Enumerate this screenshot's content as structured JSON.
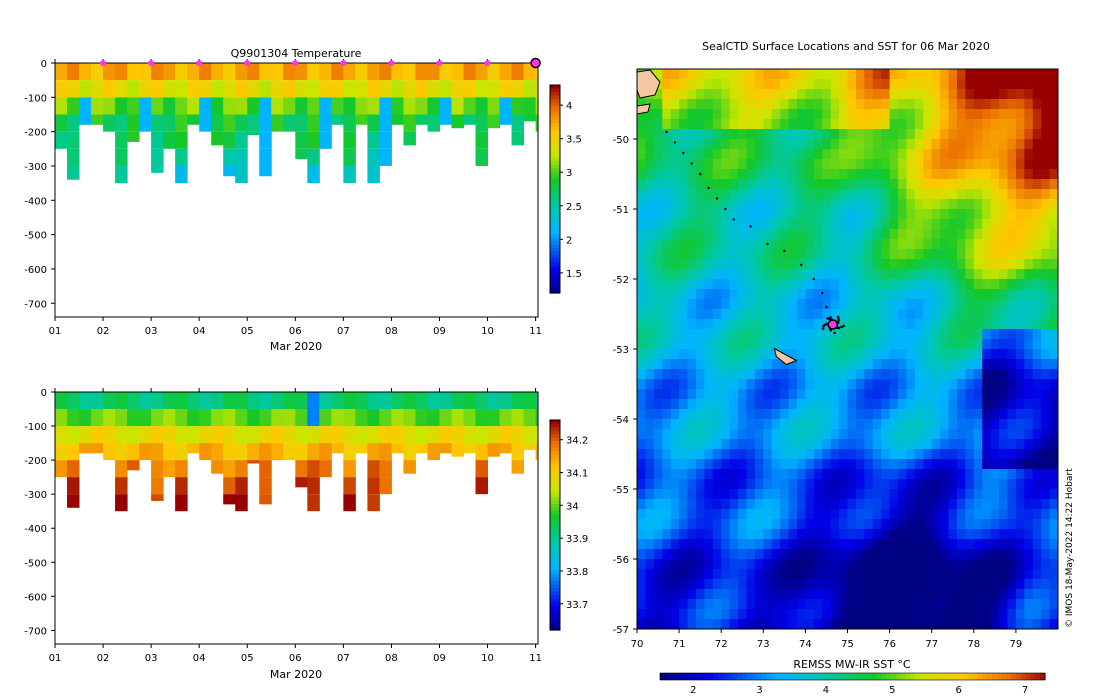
{
  "chart_data": [
    {
      "type": "heatmap",
      "title": "Q9901304  Temperature",
      "xlabel": "Mar 2020",
      "ylabel": "",
      "xticks": [
        "01",
        "02",
        "03",
        "04",
        "05",
        "06",
        "07",
        "08",
        "09",
        "10",
        "11"
      ],
      "xlim": [
        0,
        10.05
      ],
      "ylim": [
        -740,
        0
      ],
      "yticks": [
        0,
        -100,
        -200,
        -300,
        -400,
        -500,
        -600,
        -700
      ],
      "colorbar": {
        "min": 1.2,
        "max": 4.3,
        "ticks": [
          1.5,
          2,
          2.5,
          3,
          3.5,
          4
        ]
      },
      "markers_days": [
        1,
        2,
        3,
        4,
        5,
        6,
        7,
        8,
        9,
        10
      ],
      "last_marker_day": 10,
      "depth_layers": [
        -50,
        -100,
        -150,
        -200,
        -250,
        -300,
        -350
      ],
      "profiles": [
        {
          "t": 0.0,
          "d": -250
        },
        {
          "t": 0.25,
          "d": -340
        },
        {
          "t": 0.5,
          "d": -180
        },
        {
          "t": 0.75,
          "d": -180
        },
        {
          "t": 1.0,
          "d": -200
        },
        {
          "t": 1.25,
          "d": -370
        },
        {
          "t": 1.5,
          "d": -230
        },
        {
          "t": 1.75,
          "d": -200
        },
        {
          "t": 2.0,
          "d": -320
        },
        {
          "t": 2.25,
          "d": -250
        },
        {
          "t": 2.5,
          "d": -370
        },
        {
          "t": 2.75,
          "d": -180
        },
        {
          "t": 3.0,
          "d": -200
        },
        {
          "t": 3.25,
          "d": -240
        },
        {
          "t": 3.5,
          "d": -330
        },
        {
          "t": 3.75,
          "d": -370
        },
        {
          "t": 4.0,
          "d": -210
        },
        {
          "t": 4.25,
          "d": -330
        },
        {
          "t": 4.5,
          "d": -200
        },
        {
          "t": 4.75,
          "d": -200
        },
        {
          "t": 5.0,
          "d": -280
        },
        {
          "t": 5.25,
          "d": -370
        },
        {
          "t": 5.5,
          "d": -250
        },
        {
          "t": 5.75,
          "d": -180
        },
        {
          "t": 6.0,
          "d": -350
        },
        {
          "t": 6.25,
          "d": -180
        },
        {
          "t": 6.5,
          "d": -370
        },
        {
          "t": 6.75,
          "d": -300
        },
        {
          "t": 7.0,
          "d": -180
        },
        {
          "t": 7.25,
          "d": -240
        },
        {
          "t": 7.5,
          "d": -180
        },
        {
          "t": 7.75,
          "d": -200
        },
        {
          "t": 8.0,
          "d": -180
        },
        {
          "t": 8.25,
          "d": -190
        },
        {
          "t": 8.5,
          "d": -180
        },
        {
          "t": 8.75,
          "d": -300
        },
        {
          "t": 9.0,
          "d": -190
        },
        {
          "t": 9.25,
          "d": -180
        },
        {
          "t": 9.5,
          "d": -240
        },
        {
          "t": 9.75,
          "d": -170
        },
        {
          "t": 10.0,
          "d": -200
        }
      ]
    },
    {
      "type": "heatmap",
      "title": "",
      "xlabel": "Mar 2020",
      "ylabel": "",
      "xticks": [
        "01",
        "02",
        "03",
        "04",
        "05",
        "06",
        "07",
        "08",
        "09",
        "10",
        "11"
      ],
      "xlim": [
        0,
        10.05
      ],
      "ylim": [
        -740,
        0
      ],
      "yticks": [
        0,
        -100,
        -200,
        -300,
        -400,
        -500,
        -600,
        -700
      ],
      "colorbar": {
        "min": 33.62,
        "max": 34.26,
        "ticks": [
          33.7,
          33.8,
          33.9,
          34,
          34.1,
          34.2
        ]
      }
    },
    {
      "type": "heatmap",
      "title": "SealCTD Surface Locations and SST for 06 Mar 2020",
      "xlabel": "",
      "ylabel": "",
      "xlim": [
        70,
        80
      ],
      "ylim": [
        -57,
        -49
      ],
      "xticks": [
        "70",
        "71",
        "72",
        "73",
        "74",
        "75",
        "76",
        "77",
        "78",
        "79"
      ],
      "yticks": [
        "-50",
        "-51",
        "-52",
        "-53",
        "-54",
        "-55",
        "-56",
        "-57"
      ],
      "colorbar": {
        "label": "REMSS MW-IR SST °C",
        "min": 1.5,
        "max": 7.3,
        "ticks": [
          "2",
          "3",
          "4",
          "5",
          "6",
          "7"
        ]
      },
      "track": [
        {
          "lon": 70.7,
          "lat": -49.9
        },
        {
          "lon": 70.9,
          "lat": -50.05
        },
        {
          "lon": 71.1,
          "lat": -50.2
        },
        {
          "lon": 71.3,
          "lat": -50.35
        },
        {
          "lon": 71.5,
          "lat": -50.5
        },
        {
          "lon": 71.7,
          "lat": -50.7
        },
        {
          "lon": 71.9,
          "lat": -50.85
        },
        {
          "lon": 72.1,
          "lat": -51.0
        },
        {
          "lon": 72.3,
          "lat": -51.15
        },
        {
          "lon": 72.7,
          "lat": -51.25
        },
        {
          "lon": 73.1,
          "lat": -51.5
        },
        {
          "lon": 73.5,
          "lat": -51.6
        },
        {
          "lon": 73.9,
          "lat": -51.8
        },
        {
          "lon": 74.2,
          "lat": -52.0
        },
        {
          "lon": 74.4,
          "lat": -52.2
        },
        {
          "lon": 74.5,
          "lat": -52.4
        },
        {
          "lon": 74.6,
          "lat": -52.55
        }
      ],
      "cluster_center": {
        "lon": 74.65,
        "lat": -52.65
      },
      "island": {
        "lon": 73.5,
        "lat": -53.05
      }
    }
  ],
  "credit": "© IMOS 18-May-2022 14:22 Hobart"
}
